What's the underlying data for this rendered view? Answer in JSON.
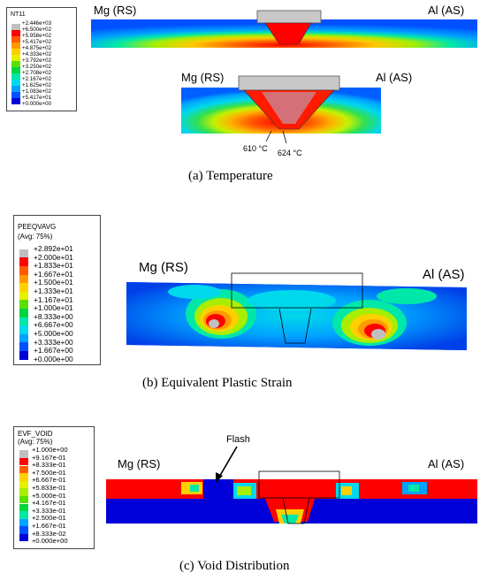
{
  "panels": {
    "a": {
      "legend_title": "NT11",
      "legend_levels": [
        "+2.446e+03",
        "+6.500e+02",
        "+5.958e+02",
        "+5.417e+02",
        "+4.875e+02",
        "+4.333e+02",
        "+3.792e+02",
        "+3.250e+02",
        "+2.708e+02",
        "+2.167e+02",
        "+1.625e+02",
        "+1.083e+02",
        "+5.417e+01",
        "+0.000e+00"
      ],
      "label_left": "Mg (RS)",
      "label_right": "Al (AS)",
      "label_left_2": "Mg (RS)",
      "label_right_2": "Al (AS)",
      "temp_1": "610 °C",
      "temp_2": "624 °C",
      "caption": "(a)  Temperature"
    },
    "b": {
      "legend_title": "PEEQVAVG",
      "legend_subtitle": "(Avg: 75%)",
      "legend_levels": [
        "+2.892e+01",
        "+2.000e+01",
        "+1.833e+01",
        "+1.667e+01",
        "+1.500e+01",
        "+1.333e+01",
        "+1.167e+01",
        "+1.000e+01",
        "+8.333e+00",
        "+6.667e+00",
        "+5.000e+00",
        "+3.333e+00",
        "+1.667e+00",
        "+0.000e+00"
      ],
      "label_left": "Mg (RS)",
      "label_right": "Al (AS)",
      "caption": "(b)  Equivalent Plastic Strain"
    },
    "c": {
      "legend_title": "EVF_VOID",
      "legend_subtitle": "(Avg: 75%)",
      "legend_levels": [
        "+1.000e+00",
        "+9.167e-01",
        "+8.333e-01",
        "+7.500e-01",
        "+6.667e-01",
        "+5.833e-01",
        "+5.000e-01",
        "+4.167e-01",
        "+3.333e-01",
        "+2.500e-01",
        "+1.667e-01",
        "+8.333e-02",
        "+0.000e+00"
      ],
      "label_left": "Mg (RS)",
      "label_right": "Al (AS)",
      "flash_label": "Flash",
      "caption": "(c)  Void Distribution"
    }
  },
  "colors": {
    "scale": [
      "#c0c0c0",
      "#ff0000",
      "#ff5a00",
      "#ff9900",
      "#ffd000",
      "#e6f000",
      "#a8ee00",
      "#5ae000",
      "#00d640",
      "#00e8a8",
      "#00d8ec",
      "#00a2ff",
      "#0050ff",
      "#0000d8"
    ]
  }
}
